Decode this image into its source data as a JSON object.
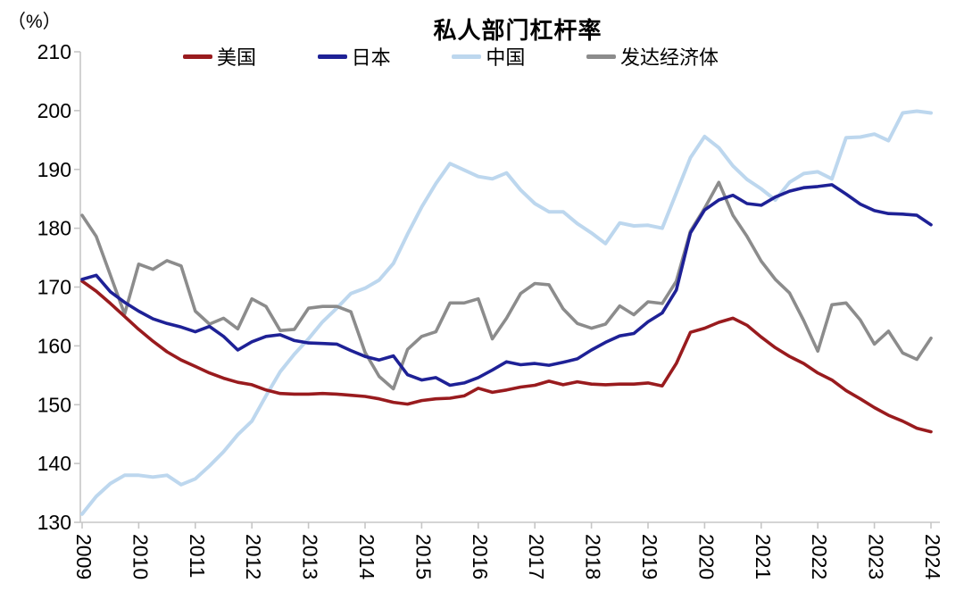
{
  "chart": {
    "title": "私人部门杠杆率",
    "unit_label": "（%）"
  },
  "chart_data": {
    "type": "line",
    "title": "私人部门杠杆率",
    "ylabel": "（%）",
    "xlabel": "",
    "grid": false,
    "legend_position": "top",
    "ylim": [
      130,
      210
    ],
    "y_ticks": [
      210,
      200,
      190,
      180,
      170,
      160,
      150,
      140,
      130
    ],
    "x_ticks": [
      2009,
      2010,
      2011,
      2012,
      2013,
      2014,
      2015,
      2016,
      2017,
      2018,
      2019,
      2020,
      2021,
      2022,
      2023,
      2024
    ],
    "x_start": 2009.0,
    "x_step": 0.25,
    "axis_color": "#c6c6c6",
    "draw_order": [
      "cn",
      "dev",
      "us",
      "jp"
    ],
    "series": [
      {
        "key": "us",
        "name": "美国",
        "color": "#991b1e",
        "stroke_width": 3.6,
        "values": [
          171.0,
          169.3,
          167.2,
          165.0,
          162.8,
          160.8,
          159.0,
          157.6,
          156.5,
          155.4,
          154.5,
          153.8,
          153.4,
          152.5,
          151.9,
          151.8,
          151.8,
          151.9,
          151.8,
          151.6,
          151.4,
          151.0,
          150.4,
          150.1,
          150.7,
          151.0,
          151.1,
          151.5,
          152.8,
          152.1,
          152.5,
          153.0,
          153.3,
          154.0,
          153.4,
          153.9,
          153.5,
          153.4,
          153.5,
          153.5,
          153.7,
          153.2,
          157.0,
          162.3,
          163.0,
          164.0,
          164.7,
          163.5,
          161.5,
          159.7,
          158.2,
          157.0,
          155.4,
          154.2,
          152.4,
          151.0,
          149.5,
          148.2,
          147.2,
          146.0,
          145.4
        ]
      },
      {
        "key": "jp",
        "name": "日本",
        "color": "#1e2196",
        "stroke_width": 3.6,
        "values": [
          171.3,
          172.0,
          169.2,
          167.4,
          165.9,
          164.6,
          163.8,
          163.2,
          162.4,
          163.3,
          161.6,
          159.3,
          160.7,
          161.6,
          161.9,
          160.9,
          160.5,
          160.4,
          160.3,
          159.2,
          158.2,
          157.6,
          158.3,
          155.1,
          154.2,
          154.6,
          153.3,
          153.7,
          154.6,
          155.9,
          157.3,
          156.8,
          157.0,
          156.7,
          157.2,
          157.8,
          159.3,
          160.6,
          161.7,
          162.1,
          164.1,
          165.6,
          169.5,
          179.2,
          183.1,
          184.8,
          185.6,
          184.2,
          183.9,
          185.3,
          186.3,
          186.9,
          187.1,
          187.4,
          185.8,
          184.1,
          183.0,
          182.5,
          182.4,
          182.2,
          180.6
        ]
      },
      {
        "key": "cn",
        "name": "中国",
        "color": "#bdd7ee",
        "stroke_width": 4.0,
        "values": [
          131.4,
          134.4,
          136.6,
          138.0,
          138.0,
          137.7,
          138.0,
          136.4,
          137.4,
          139.6,
          142.0,
          144.9,
          147.2,
          151.5,
          155.6,
          158.6,
          161.2,
          164.1,
          166.4,
          168.9,
          169.8,
          171.2,
          174.0,
          179.0,
          183.6,
          187.6,
          191.0,
          189.9,
          188.8,
          188.4,
          189.4,
          186.5,
          184.2,
          182.8,
          182.8,
          180.8,
          179.2,
          177.4,
          180.9,
          180.4,
          180.5,
          180.0,
          186.0,
          192.0,
          195.6,
          193.7,
          190.6,
          188.3,
          186.7,
          184.8,
          187.8,
          189.3,
          189.6,
          188.4,
          195.4,
          195.5,
          196.0,
          194.9,
          199.6,
          199.9,
          199.6
        ]
      },
      {
        "key": "dev",
        "name": "发达经济体",
        "color": "#8c8c8c",
        "stroke_width": 3.6,
        "values": [
          182.2,
          178.6,
          172.0,
          165.4,
          173.9,
          173.0,
          174.5,
          173.6,
          165.9,
          163.7,
          164.7,
          162.9,
          168.0,
          166.7,
          162.6,
          162.8,
          166.4,
          166.7,
          166.7,
          165.8,
          158.9,
          154.8,
          152.7,
          159.4,
          161.6,
          162.4,
          167.3,
          167.3,
          168.0,
          161.2,
          164.7,
          168.9,
          170.6,
          170.4,
          166.3,
          163.8,
          163.0,
          163.7,
          166.8,
          165.3,
          167.5,
          167.2,
          171.0,
          179.5,
          183.4,
          187.8,
          182.2,
          178.6,
          174.4,
          171.3,
          169.0,
          164.3,
          159.1,
          167.0,
          167.3,
          164.4,
          160.3,
          162.5,
          158.8,
          157.7,
          161.3
        ]
      }
    ]
  }
}
